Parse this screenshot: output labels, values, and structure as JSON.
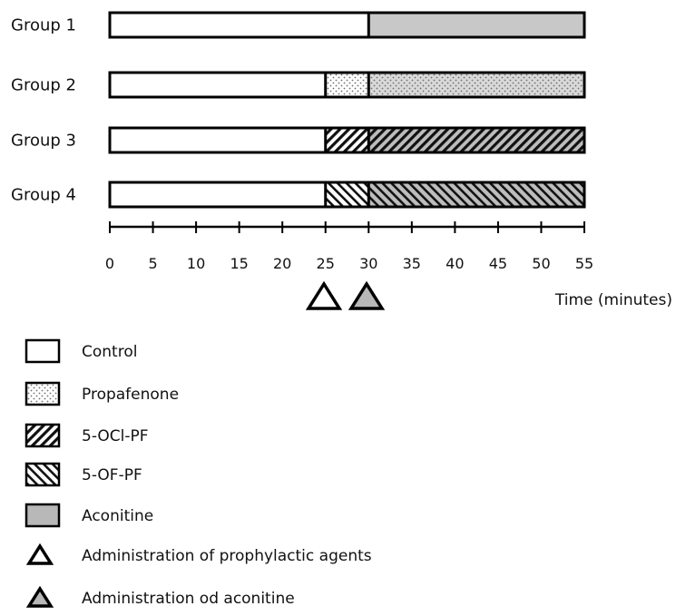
{
  "colors": {
    "outline": "#000000",
    "control": "#ffffff",
    "aconitine": "#c8c8c8",
    "propafenone_dots": "#7a7a7a"
  },
  "chart_data": {
    "type": "timeline",
    "x_unit_label": "Time (minutes)",
    "x_range": [
      0,
      55
    ],
    "x_ticks": [
      0,
      5,
      10,
      15,
      20,
      25,
      30,
      35,
      40,
      45,
      50,
      55
    ],
    "groups": [
      {
        "name": "Group 1",
        "segments": [
          {
            "treatment": "control",
            "start": 0,
            "end": 30
          },
          {
            "treatment": "aconitine",
            "start": 30,
            "end": 55
          }
        ]
      },
      {
        "name": "Group 2",
        "segments": [
          {
            "treatment": "control",
            "start": 0,
            "end": 25
          },
          {
            "treatment": "propafenone",
            "start": 25,
            "end": 30
          },
          {
            "treatment": "propafenone",
            "start": 30,
            "end": 55
          }
        ]
      },
      {
        "name": "Group 3",
        "segments": [
          {
            "treatment": "control",
            "start": 0,
            "end": 25
          },
          {
            "treatment": "ocl",
            "start": 25,
            "end": 30
          },
          {
            "treatment": "ocl",
            "start": 30,
            "end": 55
          }
        ]
      },
      {
        "name": "Group 4",
        "segments": [
          {
            "treatment": "control",
            "start": 0,
            "end": 25
          },
          {
            "treatment": "of",
            "start": 25,
            "end": 30
          },
          {
            "treatment": "of",
            "start": 30,
            "end": 55
          }
        ]
      }
    ],
    "markers": [
      {
        "kind": "prophylactic",
        "time": 25
      },
      {
        "kind": "aconitine",
        "time": 30
      }
    ]
  },
  "legend": {
    "items": [
      {
        "key": "control",
        "label": "Control"
      },
      {
        "key": "propafenone",
        "label": "Propafenone"
      },
      {
        "key": "ocl",
        "label": "5-OCl-PF"
      },
      {
        "key": "of",
        "label": "5-OF-PF"
      },
      {
        "key": "aconitine",
        "label": "Aconitine"
      },
      {
        "key": "tri-white",
        "label": "Administration of prophylactic agents"
      },
      {
        "key": "tri-grey",
        "label": "Administration od aconitine"
      }
    ]
  }
}
